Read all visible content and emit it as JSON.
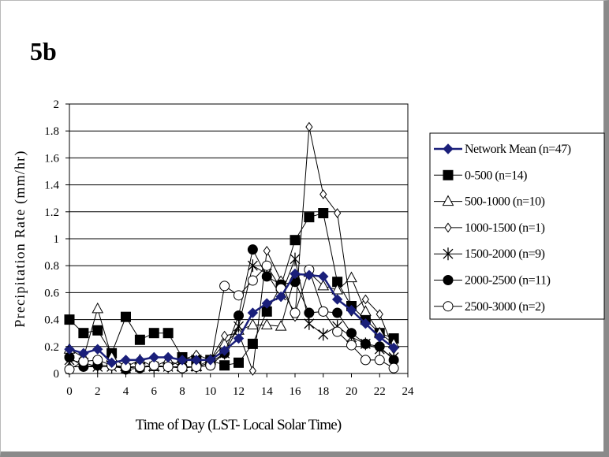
{
  "slide_label": "5b",
  "chart_data": {
    "type": "line",
    "title": "5b",
    "xlabel": "Time of Day (LST- Local Solar Time)",
    "ylabel": "Precipitation Rate (mm/hr)",
    "xlim": [
      0,
      24
    ],
    "ylim": [
      0,
      2
    ],
    "x_ticks": [
      0,
      2,
      4,
      6,
      8,
      10,
      12,
      14,
      16,
      18,
      20,
      22,
      24
    ],
    "y_ticks": [
      0,
      0.2,
      0.4,
      0.6,
      0.8,
      1,
      1.2,
      1.4,
      1.6,
      1.8,
      2
    ],
    "y_tick_labels": [
      "0",
      "0.2",
      "0.4",
      "0.6",
      "0.8",
      "1",
      "1.2",
      "1.4",
      "1.6",
      "1.8",
      "2"
    ],
    "grid": "horizontal",
    "legend_position": "right",
    "x": [
      0,
      1,
      2,
      3,
      4,
      5,
      6,
      7,
      8,
      9,
      10,
      11,
      12,
      13,
      14,
      15,
      16,
      17,
      18,
      19,
      20,
      21,
      22,
      23
    ],
    "series": [
      {
        "name": "Network Mean (n=47)",
        "marker": "filled-diamond",
        "color": "#1a1f7a",
        "values": [
          0.18,
          0.15,
          0.18,
          0.08,
          0.1,
          0.1,
          0.12,
          0.12,
          0.1,
          0.1,
          0.1,
          0.17,
          0.26,
          0.45,
          0.52,
          0.57,
          0.74,
          0.73,
          0.72,
          0.55,
          0.47,
          0.37,
          0.27,
          0.19
        ]
      },
      {
        "name": "0-500 (n=14)",
        "marker": "filled-square",
        "color": "#000000",
        "values": [
          0.4,
          0.3,
          0.32,
          0.15,
          0.42,
          0.25,
          0.3,
          0.3,
          0.12,
          0.1,
          0.1,
          0.06,
          0.08,
          0.22,
          0.46,
          0.65,
          0.99,
          1.16,
          1.19,
          0.68,
          0.5,
          0.4,
          0.3,
          0.26
        ]
      },
      {
        "name": "500-1000 (n=10)",
        "marker": "open-triangle",
        "color": "#000000",
        "values": [
          0.18,
          0.12,
          0.48,
          0.12,
          0.05,
          0.1,
          0.05,
          0.1,
          0.05,
          0.05,
          0.1,
          0.22,
          0.32,
          0.36,
          0.36,
          0.35,
          0.72,
          0.75,
          0.65,
          0.62,
          0.71,
          0.46,
          0.3,
          0.22
        ]
      },
      {
        "name": "1000-1500 (n=1)",
        "marker": "open-diamond",
        "color": "#000000",
        "values": [
          0.05,
          0.05,
          0.05,
          0.05,
          0.05,
          0.05,
          0.05,
          0.05,
          0.1,
          0.14,
          0.1,
          0.28,
          0.3,
          0.02,
          0.91,
          0.69,
          0.42,
          1.83,
          1.33,
          1.19,
          0.46,
          0.55,
          0.44,
          0.18
        ]
      },
      {
        "name": "1500-2000 (n=9)",
        "marker": "star",
        "color": "#000000",
        "values": [
          0.1,
          0.08,
          0.05,
          0.05,
          0.04,
          0.05,
          0.05,
          0.05,
          0.05,
          0.05,
          0.08,
          0.15,
          0.35,
          0.8,
          0.74,
          0.58,
          0.85,
          0.37,
          0.29,
          0.35,
          0.27,
          0.22,
          0.18,
          0.12
        ]
      },
      {
        "name": "2000-2500 (n=11)",
        "marker": "filled-circle",
        "color": "#000000",
        "values": [
          0.12,
          0.05,
          0.06,
          0.06,
          0.03,
          0.04,
          0.06,
          0.05,
          0.05,
          0.05,
          0.06,
          0.15,
          0.43,
          0.92,
          0.72,
          0.66,
          0.68,
          0.45,
          0.46,
          0.45,
          0.3,
          0.22,
          0.2,
          0.1
        ]
      },
      {
        "name": "2500-3000 (n=2)",
        "marker": "open-circle",
        "color": "#000000",
        "values": [
          0.03,
          0.09,
          0.1,
          0.06,
          0.05,
          0.05,
          0.06,
          0.05,
          0.04,
          0.05,
          0.06,
          0.65,
          0.58,
          0.69,
          0.8,
          0.63,
          0.45,
          0.77,
          0.46,
          0.31,
          0.21,
          0.1,
          0.1,
          0.04
        ]
      }
    ]
  }
}
